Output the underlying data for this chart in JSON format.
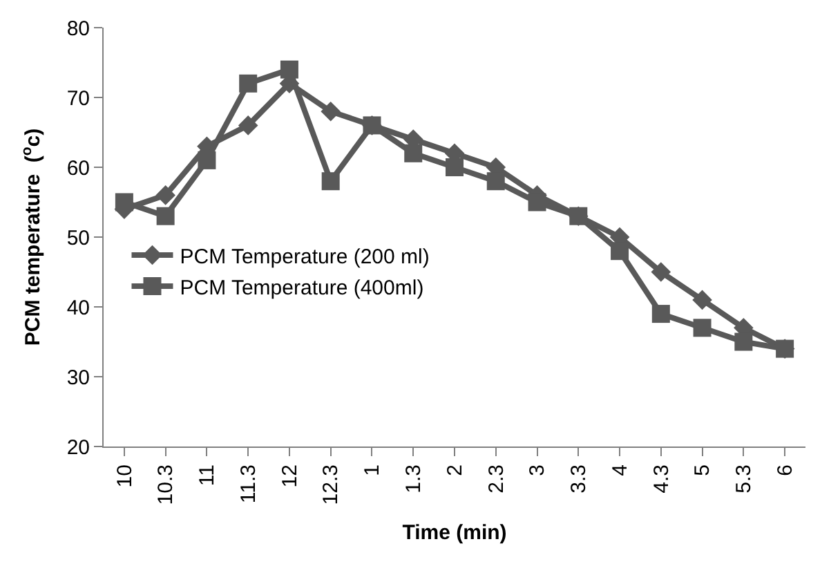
{
  "chart_data": {
    "type": "line",
    "xlabel": "Time (min)",
    "ylabel": "PCM temperature  ($^{o}$c)",
    "categories": [
      "10",
      "10.3",
      "11",
      "11.3",
      "12",
      "12.3",
      "1",
      "1.3",
      "2",
      "2.3",
      "3",
      "3.3",
      "4",
      "4.3",
      "5",
      "5.3",
      "6"
    ],
    "series": [
      {
        "name": "PCM Temperature (200 ml)",
        "color": "#595959",
        "marker": "diamond",
        "values": [
          54,
          56,
          63,
          66,
          72,
          68,
          66,
          64,
          62,
          60,
          56,
          53,
          50,
          45,
          41,
          37,
          34
        ]
      },
      {
        "name": "PCM Temperature (400ml)",
        "color": "#595959",
        "marker": "square",
        "values": [
          55,
          53,
          61,
          72,
          74,
          58,
          66,
          62,
          60,
          58,
          55,
          53,
          48,
          39,
          37,
          35,
          34
        ]
      }
    ],
    "ylim": [
      20,
      80
    ],
    "yticks": [
      20,
      30,
      40,
      50,
      60,
      70,
      80
    ],
    "legend": "left",
    "line_style": "solid"
  }
}
